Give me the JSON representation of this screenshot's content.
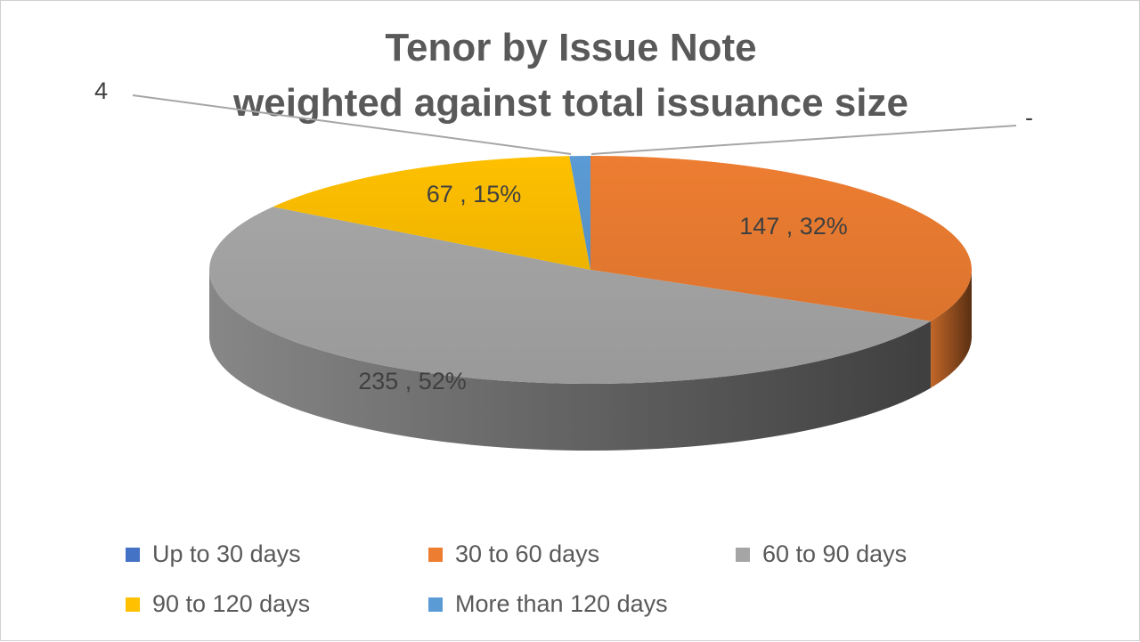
{
  "chart_data": {
    "type": "pie",
    "title": "Tenor by Issue Note",
    "subtitle": "weighted against total issuance size",
    "slices": [
      {
        "name": "Up to 30 days",
        "value": 0,
        "label": "-",
        "color": "#4472C4"
      },
      {
        "name": "30 to 60 days",
        "value": 147,
        "percent": 32,
        "label": "147 , 32%",
        "color": "#ED7D31"
      },
      {
        "name": "60 to 90 days",
        "value": 235,
        "percent": 52,
        "label": "235 , 52%",
        "color": "#A5A5A5"
      },
      {
        "name": "90 to 120 days",
        "value": 67,
        "percent": 15,
        "label": "67 , 15%",
        "color": "#FFC000"
      },
      {
        "name": "More than 120 days",
        "value": 4,
        "percent": 1,
        "label": "4",
        "color": "#5B9BD5"
      }
    ],
    "legend_position": "bottom",
    "style": "3d"
  }
}
